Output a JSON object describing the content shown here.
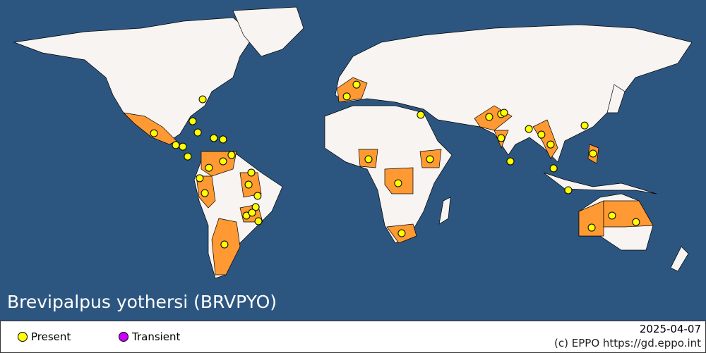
{
  "title": "Brevipalpus yothersi (BRVPYO)",
  "legend": [
    {
      "label": "Present",
      "color": "#ffff00"
    },
    {
      "label": "Transient",
      "color": "#cc00ff"
    }
  ],
  "date": "2025-04-07",
  "copyright": "(c) EPPO https://gd.eppo.int",
  "colors": {
    "ocean": "#2c5680",
    "land": "#f7f4f2",
    "present_country": "#ff9933"
  },
  "points": [
    {
      "lon": -76.6,
      "lat": 36.0
    },
    {
      "lon": -81.7,
      "lat": 24.7
    },
    {
      "lon": -79.1,
      "lat": 18.9
    },
    {
      "lon": -70.9,
      "lat": 16.0
    },
    {
      "lon": -66.2,
      "lat": 15.3
    },
    {
      "lon": -101.4,
      "lat": 18.5
    },
    {
      "lon": -90.3,
      "lat": 12.4
    },
    {
      "lon": -86.7,
      "lat": 11.6
    },
    {
      "lon": -84.2,
      "lat": 6.5
    },
    {
      "lon": -61.9,
      "lat": 7.3
    },
    {
      "lon": -66.2,
      "lat": 4.0
    },
    {
      "lon": -73.4,
      "lat": 0.7
    },
    {
      "lon": -51.8,
      "lat": -1.8
    },
    {
      "lon": -78.1,
      "lat": -4.7
    },
    {
      "lon": -53.2,
      "lat": -8.0
    },
    {
      "lon": -75.5,
      "lat": -12.4
    },
    {
      "lon": -48.6,
      "lat": -13.8
    },
    {
      "lon": -49.6,
      "lat": -19.6
    },
    {
      "lon": -54.3,
      "lat": -24.0
    },
    {
      "lon": -51.4,
      "lat": -22.5
    },
    {
      "lon": -48.2,
      "lat": -26.9
    },
    {
      "lon": -65.5,
      "lat": -38.9
    },
    {
      "lon": 1.8,
      "lat": 43.6
    },
    {
      "lon": -3.2,
      "lat": 37.5
    },
    {
      "lon": 34.5,
      "lat": 28.0
    },
    {
      "lon": 7.9,
      "lat": 5.1
    },
    {
      "lon": 39.2,
      "lat": 5.1
    },
    {
      "lon": 23.0,
      "lat": -7.3
    },
    {
      "lon": 24.8,
      "lat": -33.1
    },
    {
      "lon": 69.4,
      "lat": 26.9
    },
    {
      "lon": 75.5,
      "lat": 28.4
    },
    {
      "lon": 77.0,
      "lat": 29.1
    },
    {
      "lon": 75.5,
      "lat": 16.0
    },
    {
      "lon": 80.2,
      "lat": 4.0
    },
    {
      "lon": 89.6,
      "lat": 20.7
    },
    {
      "lon": 96.0,
      "lat": 17.8
    },
    {
      "lon": 100.7,
      "lat": 12.7
    },
    {
      "lon": 102.2,
      "lat": 0.4
    },
    {
      "lon": 109.7,
      "lat": -10.9
    },
    {
      "lon": 118.0,
      "lat": 22.5
    },
    {
      "lon": 122.3,
      "lat": 8.0
    },
    {
      "lon": 121.6,
      "lat": -30.2
    },
    {
      "lon": 132.0,
      "lat": -24.0
    },
    {
      "lon": 144.2,
      "lat": -27.3
    }
  ]
}
